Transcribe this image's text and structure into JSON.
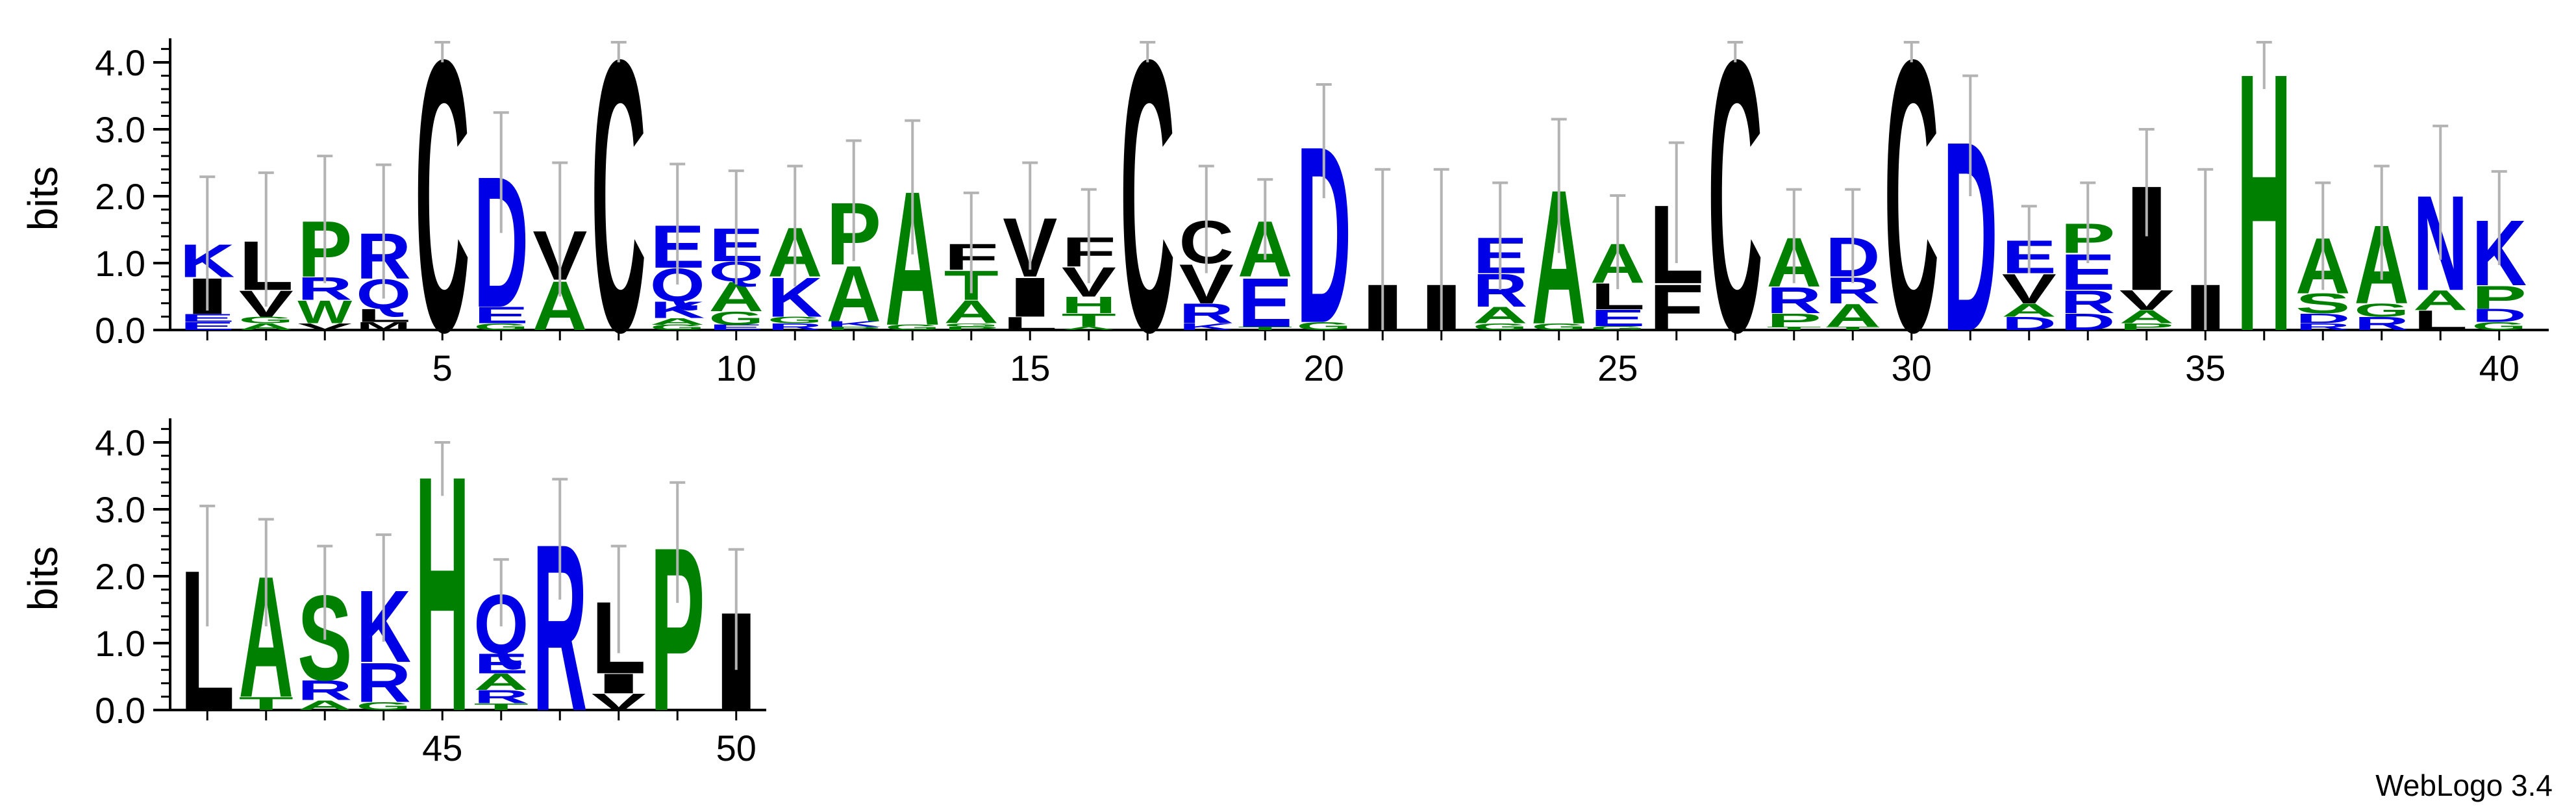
{
  "chart_data": {
    "type": "sequence-logo",
    "ylabel": "bits",
    "ylim": [
      0,
      4.32
    ],
    "yticks": [
      "0.0",
      "1.0",
      "2.0",
      "3.0",
      "4.0"
    ],
    "xticks": [
      5,
      10,
      15,
      20,
      25,
      30,
      35,
      40,
      45,
      50
    ],
    "positions": [
      {
        "pos": 1,
        "err": 1.0,
        "stack": [
          [
            "E",
            0.12
          ],
          [
            "E",
            0.12
          ],
          [
            "I",
            0.55
          ],
          [
            "K",
            0.5
          ]
        ]
      },
      {
        "pos": 2,
        "err": 1.0,
        "stack": [
          [
            "A",
            0.1
          ],
          [
            "G",
            0.1
          ],
          [
            "V",
            0.4
          ],
          [
            "L",
            0.75
          ]
        ]
      },
      {
        "pos": 3,
        "err": 0.95,
        "stack": [
          [
            "V",
            0.1
          ],
          [
            "W",
            0.35
          ],
          [
            "R",
            0.35
          ],
          [
            "P",
            0.85
          ]
        ]
      },
      {
        "pos": 4,
        "err": 1.0,
        "stack": [
          [
            "M",
            0.12
          ],
          [
            "L",
            0.2
          ],
          [
            "Q",
            0.45
          ],
          [
            "R",
            0.7
          ]
        ]
      },
      {
        "pos": 5,
        "err": 0.15,
        "stack": [
          [
            "C",
            4.15
          ]
        ]
      },
      {
        "pos": 6,
        "err": 0.9,
        "stack": [
          [
            "G",
            0.1
          ],
          [
            "E",
            0.25
          ],
          [
            "D",
            2.0
          ]
        ]
      },
      {
        "pos": 7,
        "err": 1.0,
        "stack": [
          [
            "A",
            0.75
          ],
          [
            "V",
            0.75
          ]
        ]
      },
      {
        "pos": 8,
        "err": 0.15,
        "stack": [
          [
            "C",
            4.15
          ]
        ]
      },
      {
        "pos": 9,
        "err": 0.9,
        "stack": [
          [
            "G",
            0.08
          ],
          [
            "A",
            0.1
          ],
          [
            "K",
            0.25
          ],
          [
            "Q",
            0.5
          ],
          [
            "E",
            0.65
          ]
        ]
      },
      {
        "pos": 10,
        "err": 0.85,
        "stack": [
          [
            "E",
            0.08
          ],
          [
            "G",
            0.2
          ],
          [
            "A",
            0.45
          ],
          [
            "Q",
            0.3
          ],
          [
            "E",
            0.5
          ]
        ]
      },
      {
        "pos": 11,
        "err": 0.9,
        "stack": [
          [
            "R",
            0.1
          ],
          [
            "G",
            0.1
          ],
          [
            "K",
            0.6
          ],
          [
            "A",
            0.75
          ]
        ]
      },
      {
        "pos": 12,
        "err": 0.9,
        "stack": [
          [
            "P",
            0.05
          ],
          [
            "K",
            0.08
          ],
          [
            "A",
            0.85
          ],
          [
            "P",
            0.95
          ]
        ]
      },
      {
        "pos": 13,
        "err": 1.0,
        "stack": [
          [
            "G",
            0.08
          ],
          [
            "A",
            2.05
          ]
        ]
      },
      {
        "pos": 14,
        "err": 0.75,
        "stack": [
          [
            "P",
            0.05
          ],
          [
            "G",
            0.05
          ],
          [
            "A",
            0.35
          ],
          [
            "T",
            0.45
          ],
          [
            "F",
            0.4
          ]
        ]
      },
      {
        "pos": 15,
        "err": 0.8,
        "stack": [
          [
            "L",
            0.2
          ],
          [
            "I",
            0.6
          ],
          [
            "V",
            0.9
          ]
        ]
      },
      {
        "pos": 16,
        "err": 0.7,
        "stack": [
          [
            "A",
            0.05
          ],
          [
            "T",
            0.2
          ],
          [
            "H",
            0.25
          ],
          [
            "V",
            0.45
          ],
          [
            "F",
            0.45
          ]
        ]
      },
      {
        "pos": 17,
        "err": 0.15,
        "stack": [
          [
            "C",
            4.15
          ]
        ]
      },
      {
        "pos": 18,
        "err": 0.8,
        "stack": [
          [
            "K",
            0.1
          ],
          [
            "R",
            0.3
          ],
          [
            "V",
            0.6
          ],
          [
            "C",
            0.65
          ]
        ]
      },
      {
        "pos": 19,
        "err": 0.6,
        "stack": [
          [
            "T",
            0.05
          ],
          [
            "E",
            0.75
          ],
          [
            "A",
            0.85
          ]
        ]
      },
      {
        "pos": 20,
        "err": 0.85,
        "stack": [
          [
            "G",
            0.12
          ],
          [
            "D",
            2.7
          ]
        ]
      },
      {
        "pos": 21,
        "err": 1.7,
        "stack": [
          [
            "I",
            0.7
          ]
        ]
      },
      {
        "pos": 22,
        "err": 1.7,
        "stack": [
          [
            "I",
            0.7
          ]
        ]
      },
      {
        "pos": 23,
        "err": 0.8,
        "stack": [
          [
            "G",
            0.1
          ],
          [
            "A",
            0.25
          ],
          [
            "R",
            0.5
          ],
          [
            "E",
            0.55
          ]
        ]
      },
      {
        "pos": 24,
        "err": 1.0,
        "stack": [
          [
            "G",
            0.1
          ],
          [
            "A",
            2.05
          ]
        ]
      },
      {
        "pos": 25,
        "err": 0.7,
        "stack": [
          [
            "G",
            0.06
          ],
          [
            "E",
            0.25
          ],
          [
            "L",
            0.4
          ],
          [
            "A",
            0.6
          ]
        ]
      },
      {
        "pos": 26,
        "err": 0.9,
        "stack": [
          [
            "F",
            0.7
          ],
          [
            "L",
            1.2
          ]
        ]
      },
      {
        "pos": 27,
        "err": 0.15,
        "stack": [
          [
            "C",
            4.15
          ]
        ]
      },
      {
        "pos": 28,
        "err": 0.7,
        "stack": [
          [
            "T",
            0.05
          ],
          [
            "P",
            0.2
          ],
          [
            "R",
            0.4
          ],
          [
            "A",
            0.75
          ]
        ]
      },
      {
        "pos": 29,
        "err": 0.7,
        "stack": [
          [
            "T",
            0.05
          ],
          [
            "A",
            0.35
          ],
          [
            "R",
            0.4
          ],
          [
            "D",
            0.6
          ]
        ]
      },
      {
        "pos": 30,
        "err": 0.15,
        "stack": [
          [
            "C",
            4.15
          ]
        ]
      },
      {
        "pos": 31,
        "err": 0.9,
        "stack": [
          [
            "D",
            2.9
          ]
        ]
      },
      {
        "pos": 32,
        "err": 0.5,
        "stack": [
          [
            "D",
            0.2
          ],
          [
            "A",
            0.2
          ],
          [
            "V",
            0.45
          ],
          [
            "E",
            0.5
          ]
        ]
      },
      {
        "pos": 33,
        "err": 0.6,
        "stack": [
          [
            "D",
            0.25
          ],
          [
            "R",
            0.35
          ],
          [
            "E",
            0.55
          ],
          [
            "P",
            0.45
          ]
        ]
      },
      {
        "pos": 34,
        "err": 0.8,
        "stack": [
          [
            "P",
            0.1
          ],
          [
            "A",
            0.2
          ],
          [
            "V",
            0.3
          ],
          [
            "I",
            1.6
          ]
        ]
      },
      {
        "pos": 35,
        "err": 1.7,
        "stack": [
          [
            "I",
            0.7
          ]
        ]
      },
      {
        "pos": 36,
        "err": 0.35,
        "stack": [
          [
            "H",
            3.95
          ]
        ]
      },
      {
        "pos": 37,
        "err": 0.8,
        "stack": [
          [
            "R",
            0.1
          ],
          [
            "D",
            0.15
          ],
          [
            "S",
            0.3
          ],
          [
            "A",
            0.85
          ]
        ]
      },
      {
        "pos": 38,
        "err": 0.85,
        "stack": [
          [
            "R",
            0.2
          ],
          [
            "G",
            0.2
          ],
          [
            "A",
            1.2
          ]
        ]
      },
      {
        "pos": 39,
        "err": 1.0,
        "stack": [
          [
            "L",
            0.3
          ],
          [
            "A",
            0.3
          ],
          [
            "N",
            1.45
          ]
        ]
      },
      {
        "pos": 40,
        "err": 0.7,
        "stack": [
          [
            "G",
            0.12
          ],
          [
            "D",
            0.2
          ],
          [
            "P",
            0.35
          ],
          [
            "K",
            1.0
          ]
        ]
      },
      {
        "pos": 41,
        "err": 0.9,
        "stack": [
          [
            "L",
            2.15
          ]
        ]
      },
      {
        "pos": 42,
        "err": 0.8,
        "stack": [
          [
            "T",
            0.2
          ],
          [
            "A",
            1.85
          ]
        ]
      },
      {
        "pos": 43,
        "err": 0.7,
        "stack": [
          [
            "A",
            0.15
          ],
          [
            "R",
            0.3
          ],
          [
            "S",
            1.3
          ]
        ]
      },
      {
        "pos": 44,
        "err": 0.8,
        "stack": [
          [
            "G",
            0.12
          ],
          [
            "R",
            0.6
          ],
          [
            "K",
            1.1
          ]
        ]
      },
      {
        "pos": 45,
        "err": 0.4,
        "stack": [
          [
            "H",
            3.6
          ]
        ]
      },
      {
        "pos": 46,
        "err": 0.5,
        "stack": [
          [
            "T",
            0.1
          ],
          [
            "R",
            0.2
          ],
          [
            "A",
            0.25
          ],
          [
            "E",
            0.3
          ],
          [
            "Q",
            0.9
          ]
        ]
      },
      {
        "pos": 47,
        "err": 0.9,
        "stack": [
          [
            "R",
            2.55
          ]
        ]
      },
      {
        "pos": 48,
        "err": 0.8,
        "stack": [
          [
            "V",
            0.25
          ],
          [
            "I",
            0.3
          ],
          [
            "L",
            1.1
          ]
        ]
      },
      {
        "pos": 49,
        "err": 0.9,
        "stack": [
          [
            "P",
            2.5
          ]
        ]
      },
      {
        "pos": 50,
        "err": 0.9,
        "stack": [
          [
            "I",
            1.5
          ]
        ]
      }
    ],
    "colors": {
      "hydrophobic": "#000000",
      "hydrophilic": "#0000E6",
      "polar": "#008000",
      "error_bar": "#B3B3B3"
    }
  },
  "credit": "WebLogo 3.4"
}
